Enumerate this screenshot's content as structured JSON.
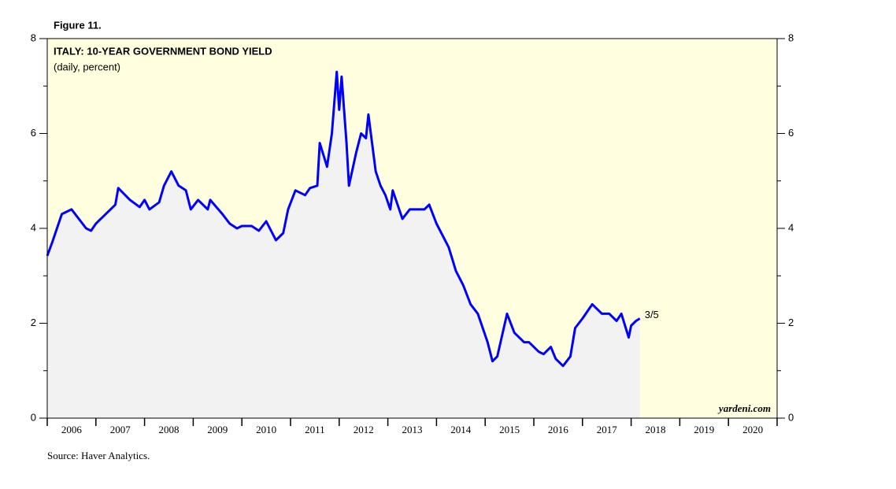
{
  "chart_data": {
    "type": "line",
    "figure_label": "Figure 11.",
    "title": "ITALY: 10-YEAR GOVERNMENT BOND YIELD",
    "subtitle": "(daily, percent)",
    "source": "Source: Haver Analytics.",
    "watermark": "yardeni.com",
    "end_label": "3/5",
    "line_color": "#0000ff",
    "area_color": "#f2f2f2",
    "background_color": "#ffffe0",
    "xlim": [
      2006,
      2021
    ],
    "ylim": [
      0,
      8
    ],
    "yticks": [
      0,
      2,
      4,
      6,
      8
    ],
    "y_minor_ticks": [
      1,
      3,
      5,
      7
    ],
    "x_minor_ticks": [
      2006,
      2007,
      2008,
      2009,
      2010,
      2011,
      2012,
      2013,
      2014,
      2015,
      2016,
      2017,
      2018,
      2019,
      2020,
      2021
    ],
    "xticks": [
      {
        "value": 2006.5,
        "label": "2006"
      },
      {
        "value": 2007.5,
        "label": "2007"
      },
      {
        "value": 2008.5,
        "label": "2008"
      },
      {
        "value": 2009.5,
        "label": "2009"
      },
      {
        "value": 2010.5,
        "label": "2010"
      },
      {
        "value": 2011.5,
        "label": "2011"
      },
      {
        "value": 2012.5,
        "label": "2012"
      },
      {
        "value": 2013.5,
        "label": "2013"
      },
      {
        "value": 2014.5,
        "label": "2014"
      },
      {
        "value": 2015.5,
        "label": "2015"
      },
      {
        "value": 2016.5,
        "label": "2016"
      },
      {
        "value": 2017.5,
        "label": "2017"
      },
      {
        "value": 2018.5,
        "label": "2018"
      },
      {
        "value": 2019.5,
        "label": "2019"
      },
      {
        "value": 2020.5,
        "label": "2020"
      }
    ],
    "x": [
      2006.0,
      2006.1,
      2006.3,
      2006.5,
      2006.8,
      2006.9,
      2007.0,
      2007.2,
      2007.4,
      2007.46,
      2007.7,
      2007.9,
      2008.0,
      2008.1,
      2008.3,
      2008.4,
      2008.55,
      2008.7,
      2008.85,
      2008.95,
      2009.1,
      2009.3,
      2009.35,
      2009.6,
      2009.75,
      2009.9,
      2010.0,
      2010.2,
      2010.35,
      2010.5,
      2010.7,
      2010.85,
      2010.95,
      2011.1,
      2011.3,
      2011.4,
      2011.55,
      2011.6,
      2011.75,
      2011.85,
      2011.95,
      2012.0,
      2012.05,
      2012.15,
      2012.2,
      2012.35,
      2012.45,
      2012.55,
      2012.6,
      2012.75,
      2012.85,
      2012.95,
      2013.05,
      2013.1,
      2013.3,
      2013.45,
      2013.6,
      2013.75,
      2013.85,
      2014.0,
      2014.1,
      2014.25,
      2014.4,
      2014.55,
      2014.7,
      2014.85,
      2014.95,
      2015.05,
      2015.15,
      2015.25,
      2015.45,
      2015.6,
      2015.8,
      2015.9,
      2016.1,
      2016.2,
      2016.35,
      2016.45,
      2016.6,
      2016.75,
      2016.85,
      2017.0,
      2017.2,
      2017.4,
      2017.55,
      2017.7,
      2017.8,
      2017.95,
      2018.0,
      2018.1,
      2018.18
    ],
    "series": [
      {
        "name": "Italy 10-year yield",
        "values": [
          3.42,
          3.7,
          4.3,
          4.4,
          4.0,
          3.95,
          4.1,
          4.3,
          4.5,
          4.85,
          4.6,
          4.45,
          4.6,
          4.4,
          4.55,
          4.9,
          5.2,
          4.9,
          4.8,
          4.4,
          4.6,
          4.4,
          4.6,
          4.3,
          4.1,
          4.0,
          4.05,
          4.05,
          3.95,
          4.15,
          3.75,
          3.9,
          4.4,
          4.8,
          4.7,
          4.85,
          4.9,
          5.8,
          5.3,
          6.0,
          7.3,
          6.5,
          7.2,
          5.8,
          4.9,
          5.6,
          6.0,
          5.9,
          6.4,
          5.2,
          4.9,
          4.7,
          4.4,
          4.8,
          4.2,
          4.4,
          4.4,
          4.4,
          4.5,
          4.1,
          3.9,
          3.6,
          3.1,
          2.8,
          2.4,
          2.2,
          1.9,
          1.6,
          1.2,
          1.3,
          2.2,
          1.8,
          1.6,
          1.6,
          1.4,
          1.35,
          1.5,
          1.25,
          1.1,
          1.3,
          1.9,
          2.1,
          2.4,
          2.2,
          2.2,
          2.05,
          2.2,
          1.7,
          1.95,
          2.05,
          2.1
        ]
      }
    ]
  }
}
